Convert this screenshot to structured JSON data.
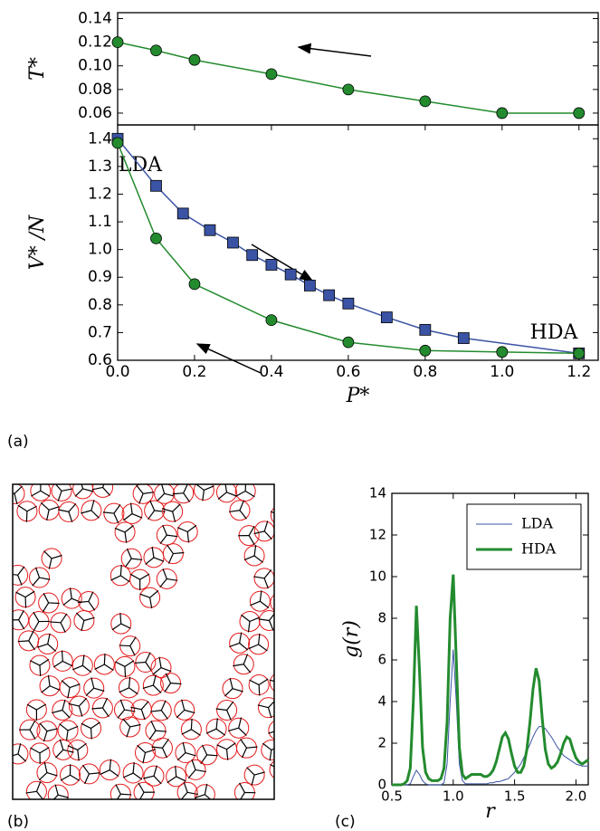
{
  "chart_data": [
    {
      "type": "line",
      "ylabel": "T*",
      "xlim": [
        0,
        1.25
      ],
      "ylim": [
        0.05,
        0.145
      ],
      "yticks": [
        {
          "value": 0.06,
          "label": "0.06"
        },
        {
          "value": 0.08,
          "label": "0.08"
        },
        {
          "value": 0.1,
          "label": "0.10"
        },
        {
          "value": 0.12,
          "label": "0.12"
        },
        {
          "value": 0.14,
          "label": "0.14"
        }
      ],
      "series": [
        {
          "color": "#238b2e",
          "marker": "circle",
          "x": [
            0,
            0.1,
            0.2,
            0.4,
            0.6,
            0.8,
            1.0,
            1.2
          ],
          "values": [
            0.12,
            0.113,
            0.105,
            0.093,
            0.08,
            0.07,
            0.06,
            0.06
          ]
        }
      ]
    },
    {
      "type": "line",
      "xlabel": "P*",
      "ylabel": "V* /N",
      "xlim": [
        0,
        1.25
      ],
      "ylim": [
        0.6,
        1.45
      ],
      "xticks": [
        {
          "value": 0,
          "label": "0.0"
        },
        0.2,
        0.4,
        0.6,
        0.8,
        {
          "value": 1,
          "label": "1.0"
        },
        1.2
      ],
      "yticks": [
        0.6,
        0.7,
        0.8,
        0.9,
        {
          "value": 1,
          "label": "1.0"
        },
        1.1,
        1.2,
        1.3,
        1.4
      ],
      "annotations": [
        "LDA",
        "HDA"
      ],
      "series": [
        {
          "color": "#3a53a4",
          "marker": "square",
          "x": [
            0,
            0.1,
            0.17,
            0.24,
            0.3,
            0.35,
            0.4,
            0.45,
            0.5,
            0.55,
            0.6,
            0.7,
            0.8,
            0.9,
            1.2
          ],
          "values": [
            1.4,
            1.23,
            1.13,
            1.07,
            1.025,
            0.98,
            0.945,
            0.91,
            0.87,
            0.835,
            0.805,
            0.755,
            0.71,
            0.68,
            0.625
          ]
        },
        {
          "color": "#238b2e",
          "marker": "circle",
          "x": [
            0,
            0.1,
            0.2,
            0.4,
            0.6,
            0.8,
            1.0,
            1.2
          ],
          "values": [
            1.385,
            1.04,
            0.875,
            0.745,
            0.665,
            0.635,
            0.63,
            0.625
          ]
        }
      ]
    },
    {
      "type": "line",
      "xlabel": "r",
      "ylabel": "g(r)",
      "xlim": [
        0.5,
        2.1
      ],
      "ylim": [
        0,
        14
      ],
      "xticks": [
        0.5,
        {
          "value": 1,
          "label": "1.0"
        },
        1.5,
        {
          "value": 2,
          "label": "2.0"
        }
      ],
      "yticks": [
        0,
        2,
        4,
        6,
        8,
        10,
        12,
        14
      ],
      "legend": "upper right",
      "x": [
        0.5,
        0.525,
        0.55,
        0.575,
        0.6,
        0.625,
        0.65,
        0.675,
        0.7,
        0.725,
        0.75,
        0.775,
        0.8,
        0.825,
        0.85,
        0.875,
        0.9,
        0.925,
        0.95,
        0.975,
        1.0,
        1.025,
        1.05,
        1.075,
        1.1,
        1.125,
        1.15,
        1.175,
        1.2,
        1.225,
        1.25,
        1.275,
        1.3,
        1.325,
        1.35,
        1.375,
        1.4,
        1.425,
        1.45,
        1.475,
        1.5,
        1.525,
        1.55,
        1.575,
        1.6,
        1.625,
        1.65,
        1.675,
        1.7,
        1.725,
        1.75,
        1.775,
        1.8,
        1.825,
        1.85,
        1.875,
        1.9,
        1.925,
        1.95,
        1.975,
        2.0,
        2.025,
        2.05,
        2.075,
        2.1
      ],
      "series": [
        {
          "name": "LDA",
          "color": "#3a53a4",
          "width": 1,
          "values": [
            0,
            0,
            0,
            0,
            0,
            0,
            0.05,
            0.4,
            0.7,
            0.5,
            0.2,
            0.05,
            0,
            0,
            0,
            0,
            0,
            0.1,
            1.0,
            4.0,
            6.5,
            4.0,
            1.0,
            0.2,
            0.05,
            0.05,
            0.05,
            0.05,
            0.05,
            0.05,
            0.05,
            0.05,
            0.1,
            0.1,
            0.15,
            0.15,
            0.2,
            0.25,
            0.3,
            0.45,
            0.6,
            0.8,
            1.0,
            1.3,
            1.6,
            1.95,
            2.3,
            2.6,
            2.8,
            2.8,
            2.7,
            2.5,
            2.3,
            2.05,
            1.8,
            1.6,
            1.4,
            1.3,
            1.2,
            1.1,
            1.0,
            0.95,
            0.9,
            0.9,
            0.9
          ]
        },
        {
          "name": "HDA",
          "color": "#238b2e",
          "width": 3,
          "values": [
            0,
            0,
            0,
            0,
            0.05,
            0.2,
            0.8,
            4.0,
            8.6,
            5.5,
            1.8,
            0.6,
            0.3,
            0.2,
            0.2,
            0.2,
            0.3,
            0.8,
            3.0,
            8.0,
            10.1,
            6.0,
            1.8,
            0.5,
            0.3,
            0.4,
            0.5,
            0.5,
            0.5,
            0.5,
            0.4,
            0.4,
            0.5,
            0.7,
            1.1,
            1.7,
            2.3,
            2.5,
            2.2,
            1.5,
            0.9,
            0.6,
            0.6,
            0.9,
            1.7,
            3.0,
            4.6,
            5.6,
            5.0,
            3.2,
            1.7,
            1.0,
            0.8,
            0.9,
            1.1,
            1.5,
            2.0,
            2.3,
            2.2,
            1.7,
            1.3,
            1.1,
            1.0,
            1.1,
            1.2
          ]
        }
      ]
    }
  ],
  "panel_labels": [
    "(a)",
    "(b)",
    "(c)"
  ]
}
